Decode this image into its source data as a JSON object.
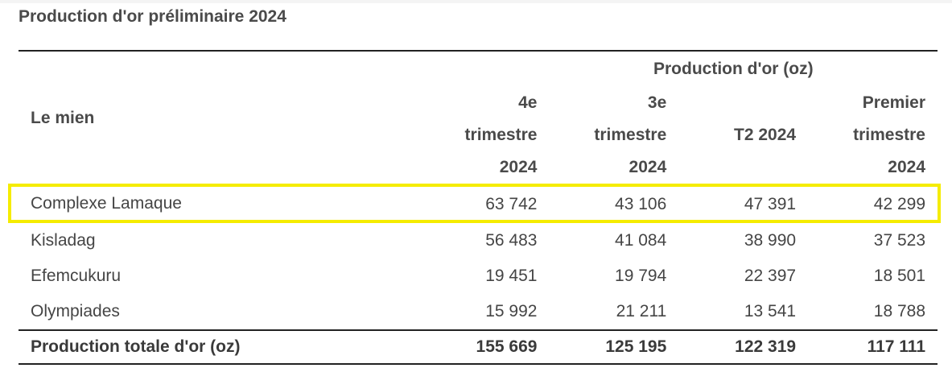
{
  "title": "Production d'or préliminaire 2024",
  "table": {
    "mine_header": "Le mien",
    "group_header": "Production d'or (oz)",
    "columns": [
      {
        "lines": [
          "4e",
          "trimestre",
          "2024"
        ]
      },
      {
        "lines": [
          "3e",
          "trimestre",
          "2024"
        ]
      },
      {
        "lines": [
          "T2 2024"
        ]
      },
      {
        "lines": [
          "Premier",
          "trimestre",
          "2024"
        ]
      }
    ],
    "rows": [
      {
        "mine": "Complexe Lamaque",
        "values": [
          "63 742",
          "43 106",
          "47 391",
          "42 299"
        ],
        "highlighted": true
      },
      {
        "mine": "Kisladag",
        "values": [
          "56 483",
          "41 084",
          "38 990",
          "37 523"
        ]
      },
      {
        "mine": "Efemcukuru",
        "values": [
          "19 451",
          "19 794",
          "22 397",
          "18 501"
        ]
      },
      {
        "mine": "Olympiades",
        "values": [
          "15 992",
          "21 211",
          "13 541",
          "18 788"
        ]
      }
    ],
    "total": {
      "label": "Production totale d'or (oz)",
      "values": [
        "155 669",
        "125 195",
        "122 319",
        "117 111"
      ]
    }
  },
  "colors": {
    "highlight": "#f5ec00",
    "rule": "#222222",
    "text": "#454545"
  }
}
